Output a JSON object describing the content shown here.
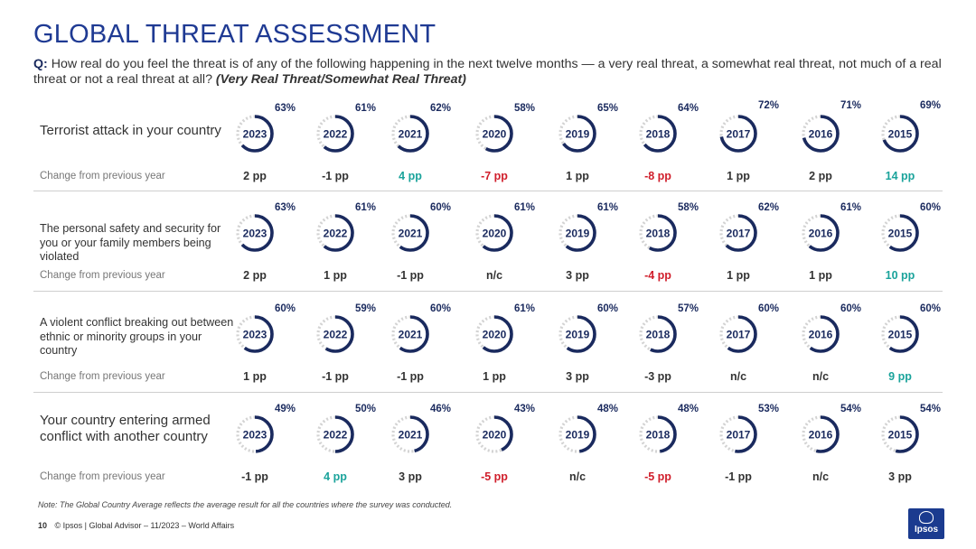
{
  "header": {
    "title": "GLOBAL THREAT ASSESSMENT",
    "q_prefix": "Q:",
    "question": "How real do you feel the threat is of any of the following happening in the next twelve months — a very real threat, a somewhat real threat, not much of a real threat or not a real threat at all?",
    "question_note": "(Very Real Threat/Somewhat Real Threat)"
  },
  "colors": {
    "ring_fill": "#1a2a5e",
    "ring_track": "#d3d3d3",
    "positive_change": "#1aa39b",
    "negative_change": "#d01e2b",
    "title": "#1f3a93"
  },
  "chart_data": {
    "type": "table",
    "years": [
      "2023",
      "2022",
      "2021",
      "2020",
      "2019",
      "2018",
      "2017",
      "2016",
      "2015"
    ],
    "change_label": "Change from previous year",
    "rows": [
      {
        "label": "Terrorist attack in your country",
        "values": [
          63,
          61,
          62,
          58,
          65,
          64,
          72,
          71,
          69
        ],
        "changes": [
          "2 pp",
          "-1 pp",
          "4 pp",
          "-7 pp",
          "1 pp",
          "-8 pp",
          "1 pp",
          "2 pp",
          "14 pp"
        ],
        "change_colors": [
          "neutral",
          "neutral",
          "positive",
          "negative",
          "neutral",
          "negative",
          "neutral",
          "neutral",
          "positive"
        ]
      },
      {
        "label": "The personal safety and security for you or your family members being violated",
        "values": [
          63,
          61,
          60,
          61,
          61,
          58,
          62,
          61,
          60
        ],
        "changes": [
          "2 pp",
          "1 pp",
          "-1 pp",
          "n/c",
          "3 pp",
          "-4 pp",
          "1 pp",
          "1 pp",
          "10 pp"
        ],
        "change_colors": [
          "neutral",
          "neutral",
          "neutral",
          "neutral",
          "neutral",
          "negative",
          "neutral",
          "neutral",
          "positive"
        ]
      },
      {
        "label": "A violent conflict breaking out between ethnic or minority groups in your country",
        "values": [
          60,
          59,
          60,
          61,
          60,
          57,
          60,
          60,
          60
        ],
        "changes": [
          "1 pp",
          "-1 pp",
          "-1 pp",
          "1 pp",
          "3 pp",
          "-3 pp",
          "n/c",
          "n/c",
          "9 pp"
        ],
        "change_colors": [
          "neutral",
          "neutral",
          "neutral",
          "neutral",
          "neutral",
          "neutral",
          "neutral",
          "neutral",
          "positive"
        ]
      },
      {
        "label": "Your country entering armed conflict with another country",
        "values": [
          49,
          50,
          46,
          43,
          48,
          48,
          53,
          54,
          54
        ],
        "changes": [
          "-1 pp",
          "4 pp",
          "3 pp",
          "-5 pp",
          "n/c",
          "-5 pp",
          "-1 pp",
          "n/c",
          "3 pp"
        ],
        "change_colors": [
          "neutral",
          "positive",
          "neutral",
          "negative",
          "neutral",
          "negative",
          "neutral",
          "neutral",
          "neutral"
        ]
      }
    ]
  },
  "footer": {
    "note": "Note: The Global Country Average reflects the average result for all the countries where the survey was conducted.",
    "page": "10",
    "source": "© Ipsos | Global Advisor – 11/2023 – World Affairs",
    "logo": "Ipsos"
  }
}
